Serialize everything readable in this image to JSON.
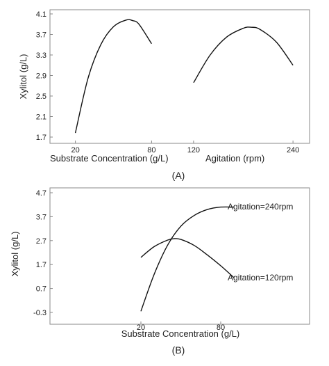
{
  "chart_data": [
    {
      "panel_label": "(A)",
      "type": "line",
      "ylabel": "Xylitol (g/L)",
      "ylim": [
        1.6,
        4.1
      ],
      "yticks": [
        "1.7",
        "2.1",
        "2.5",
        "2.9",
        "3.3",
        "3.7",
        "4.1"
      ],
      "grid": false,
      "subplots": [
        {
          "xlabel": "Substrate Concentration (g/L)",
          "xlim": [
            0,
            100
          ],
          "xticks": [
            "20",
            "80"
          ],
          "series": [
            {
              "x": [
                20,
                30,
                40,
                50,
                60,
                65,
                70,
                80
              ],
              "y": [
                1.78,
                2.85,
                3.5,
                3.85,
                3.98,
                3.97,
                3.9,
                3.52
              ]
            }
          ]
        },
        {
          "xlabel": "Agitation (rpm)",
          "xlim": [
            100,
            260
          ],
          "xticks": [
            "120",
            "240"
          ],
          "series": [
            {
              "x": [
                120,
                140,
                160,
                180,
                190,
                200,
                220,
                240
              ],
              "y": [
                2.76,
                3.3,
                3.65,
                3.82,
                3.84,
                3.8,
                3.55,
                3.1
              ]
            }
          ]
        }
      ]
    },
    {
      "panel_label": "(B)",
      "type": "line",
      "xlabel": "Substrate Concentration (g/L)",
      "ylabel": "Xylitol (g/L)",
      "xlim": [
        -25,
        140
      ],
      "ylim": [
        -0.5,
        4.8
      ],
      "xticks": [
        "20",
        "80"
      ],
      "yticks": [
        "-0.3",
        "0.7",
        "1.7",
        "2.7",
        "3.7",
        "4.7"
      ],
      "grid": false,
      "series": [
        {
          "name": "Agitation=240rpm",
          "x": [
            20,
            30,
            40,
            50,
            60,
            70,
            80,
            90
          ],
          "y": [
            -0.25,
            1.3,
            2.5,
            3.3,
            3.75,
            4.0,
            4.1,
            4.1
          ]
        },
        {
          "name": "Agitation=120rpm",
          "x": [
            20,
            30,
            40,
            45,
            50,
            60,
            70,
            80,
            90
          ],
          "y": [
            2.0,
            2.45,
            2.72,
            2.78,
            2.75,
            2.5,
            2.1,
            1.65,
            1.15
          ]
        }
      ]
    }
  ]
}
